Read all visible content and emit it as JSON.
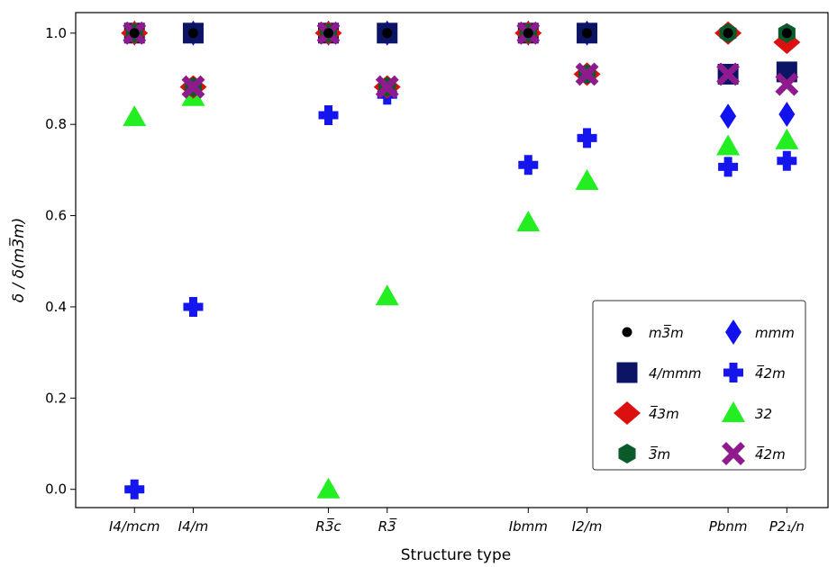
{
  "chart_data": {
    "type": "scatter",
    "xlabel": "Structure type",
    "ylabel": "δ / δ(m3̅m)",
    "categories": [
      "I4/mcm",
      "I4/m",
      "R3̅c",
      "R3̅",
      "Ibmm",
      "I2/m",
      "Pbnm",
      "P2₁/n"
    ],
    "xlim": [
      -0.52,
      8.47
    ],
    "x_positions": [
      0,
      1,
      3.3,
      4.3,
      6.7,
      7.7,
      10.1,
      11.1
    ],
    "ylim": [
      -0.04,
      1.045
    ],
    "yticks": [
      0.0,
      0.2,
      0.4,
      0.6,
      0.8,
      1.0
    ],
    "ytick_labels": [
      "0.0",
      "0.2",
      "0.4",
      "0.6",
      "0.8",
      "1.0"
    ],
    "grid": false,
    "legend_position": "lower-right",
    "series": [
      {
        "name": "m3̅m",
        "marker": "circle",
        "color": "#000000",
        "values": [
          1.0,
          1.0,
          1.0,
          1.0,
          1.0,
          1.0,
          1.0,
          1.0
        ]
      },
      {
        "name": "4/mmm",
        "marker": "square",
        "color": "#0c1466",
        "values": [
          1.0,
          1.0,
          1.0,
          1.0,
          1.0,
          1.0,
          0.91,
          0.915
        ]
      },
      {
        "name": "4̅3m",
        "marker": "diamond-wide",
        "color": "#dd1010",
        "values": [
          1.0,
          0.882,
          1.0,
          0.882,
          1.0,
          0.91,
          1.0,
          0.98
        ]
      },
      {
        "name": "3̅m",
        "marker": "hexagon",
        "color": "#0b5a2b",
        "values": [
          1.0,
          0.882,
          1.0,
          0.882,
          1.0,
          0.91,
          1.0,
          1.0
        ]
      },
      {
        "name": "mmm",
        "marker": "diamond-thin",
        "color": "#1212ee",
        "values": [
          1.0,
          1.0,
          1.0,
          1.0,
          1.0,
          1.0,
          0.818,
          0.822
        ]
      },
      {
        "name": "4̅2m",
        "marker": "plus",
        "color": "#1515ee",
        "values": [
          0.0,
          0.4,
          0.82,
          0.865,
          0.711,
          0.77,
          0.707,
          0.72
        ]
      },
      {
        "name": "32",
        "marker": "triangle",
        "color": "#22ee22",
        "values": [
          0.816,
          0.86,
          0.0,
          0.423,
          0.585,
          0.676,
          0.752,
          0.765
        ]
      },
      {
        "name": "4̅2m",
        "marker": "x",
        "color": "#8e1a8e",
        "values": [
          1.0,
          0.882,
          1.0,
          0.882,
          1.0,
          0.91,
          0.91,
          0.888
        ]
      }
    ],
    "legend_order": [
      0,
      4,
      1,
      5,
      2,
      6,
      3,
      7
    ]
  }
}
